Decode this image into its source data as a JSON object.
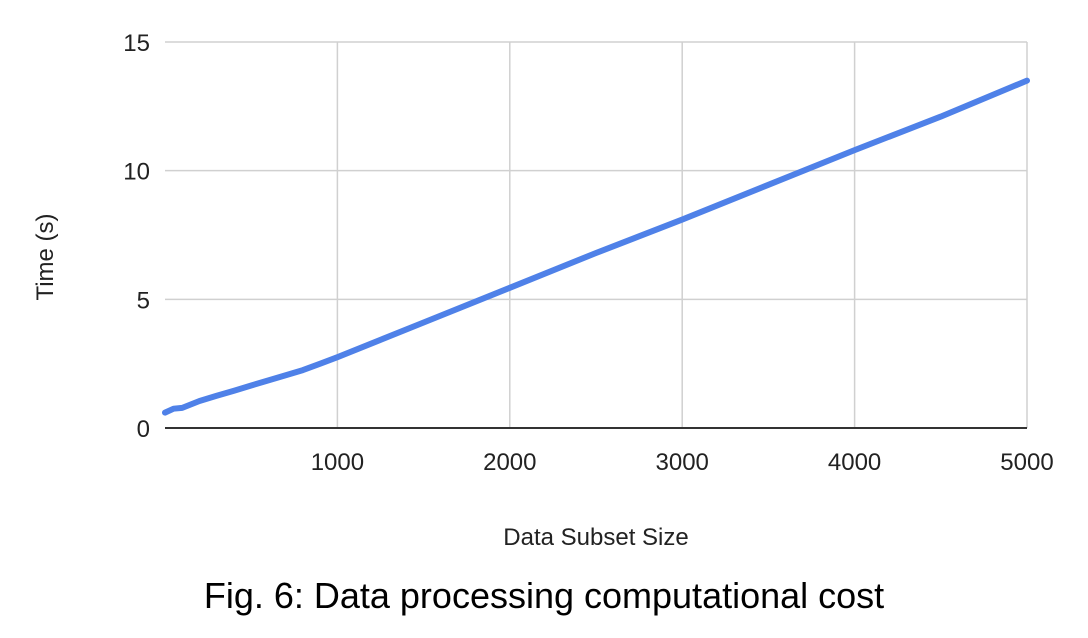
{
  "caption": "Fig. 6: Data processing computational cost",
  "chart_data": {
    "type": "line",
    "title": "",
    "xlabel": "Data Subset Size",
    "ylabel": "Time (s)",
    "xlim": [
      0,
      5000
    ],
    "ylim": [
      0,
      15
    ],
    "x_ticks": [
      1000,
      2000,
      3000,
      4000,
      5000
    ],
    "y_ticks": [
      0,
      5,
      10,
      15
    ],
    "grid": true,
    "legend": "none",
    "series": [
      {
        "color": "#4f81e8",
        "x": [
          0,
          50,
          100,
          200,
          300,
          400,
          500,
          600,
          700,
          800,
          900,
          1000,
          1500,
          2000,
          2500,
          3000,
          3500,
          4000,
          4500,
          5000
        ],
        "y": [
          0.6,
          0.75,
          0.78,
          1.05,
          1.25,
          1.45,
          1.65,
          1.85,
          2.05,
          2.25,
          2.5,
          2.75,
          4.1,
          5.45,
          6.8,
          8.1,
          9.45,
          10.8,
          12.1,
          13.5
        ]
      }
    ]
  }
}
